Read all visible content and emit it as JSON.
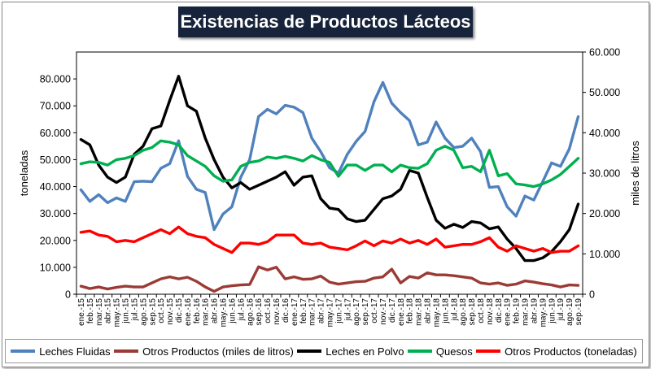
{
  "chart_data": {
    "type": "line",
    "title": "Existencias de Productos Lácteos",
    "ylabel_left": "toneladas",
    "ylabel_right": "miles de litros",
    "ylim_left": [
      0,
      90000
    ],
    "ylim_right": [
      0,
      60000
    ],
    "yticks_left": [
      "0",
      "10.000",
      "20.000",
      "30.000",
      "40.000",
      "50.000",
      "60.000",
      "70.000",
      "80.000"
    ],
    "yticks_right": [
      "0",
      "10.000",
      "20.000",
      "30.000",
      "40.000",
      "50.000",
      "60.000"
    ],
    "yticks_left_values": [
      0,
      10000,
      20000,
      30000,
      40000,
      50000,
      60000,
      70000,
      80000
    ],
    "yticks_right_values": [
      0,
      10000,
      20000,
      30000,
      40000,
      50000,
      60000
    ],
    "categories": [
      "ene.-15",
      "feb.-15",
      "mar.-15",
      "abr.-15",
      "may.-15",
      "jun.-15",
      "jul.-15",
      "ago.-15",
      "sep.-15",
      "oct.-15",
      "nov.-15",
      "dic.-15",
      "ene.-16",
      "feb.-16",
      "mar.-16",
      "abr.-16",
      "may.-16",
      "jun.-16",
      "jul.-16",
      "ago.-16",
      "sep.-16",
      "oct.-16",
      "nov.-16",
      "dic.-16",
      "ene.-17",
      "feb.-17",
      "mar.-17",
      "abr.-17",
      "may.-17",
      "jun.-17",
      "jul.-17",
      "ago.-17",
      "sep.-17",
      "oct.-17",
      "nov.-17",
      "dic.-17",
      "ene.-18",
      "feb.-18",
      "mar.-18",
      "abr.-18",
      "may.-18",
      "jun.-18",
      "jul.-18",
      "ago.-18",
      "sep.-18",
      "oct.-18",
      "nov.-18",
      "dic.-18",
      "ene.-19",
      "feb.-19",
      "mar.-19",
      "abr.-19",
      "may.-19",
      "jun.-19",
      "jul.-19",
      "ago.-19",
      "sep.-19"
    ],
    "series": [
      {
        "name": "Leches Fluidas",
        "axis": "left",
        "color": "#4f81bd",
        "values": [
          38800,
          34500,
          37000,
          34000,
          35800,
          34500,
          41800,
          42000,
          41800,
          46800,
          48500,
          57000,
          43800,
          39000,
          37800,
          24000,
          29800,
          32500,
          43500,
          50000,
          66000,
          68700,
          67000,
          70200,
          69500,
          67500,
          58000,
          53000,
          47000,
          45000,
          52000,
          56800,
          60500,
          71500,
          78700,
          71000,
          67500,
          64500,
          55500,
          56500,
          64000,
          58000,
          54500,
          55000,
          58000,
          53000,
          39700,
          40000,
          32500,
          29000,
          36500,
          35000,
          41800,
          48800,
          47500,
          54000,
          66000
        ]
      },
      {
        "name": "Otros Productos (miles de litros)",
        "axis": "right",
        "color": "#9b3b35",
        "values": [
          2000,
          1400,
          1800,
          1300,
          1700,
          2000,
          1800,
          1800,
          2800,
          3800,
          4300,
          3800,
          4200,
          3200,
          1800,
          700,
          1800,
          2100,
          2300,
          2400,
          6800,
          6000,
          6700,
          3800,
          4300,
          3700,
          3800,
          4500,
          3000,
          2500,
          2800,
          3100,
          3200,
          4000,
          4300,
          6200,
          2800,
          4400,
          4000,
          5300,
          4800,
          4800,
          4600,
          4300,
          4000,
          2800,
          2500,
          2800,
          2200,
          2500,
          3300,
          3000,
          2600,
          2300,
          1800,
          2300,
          2200
        ]
      },
      {
        "name": "Leches en Polvo",
        "axis": "left",
        "color": "#000000",
        "values": [
          57500,
          55500,
          48000,
          43500,
          41500,
          43500,
          52000,
          55000,
          61500,
          62500,
          72000,
          81000,
          70000,
          68000,
          58000,
          50000,
          43500,
          39500,
          41500,
          39000,
          40500,
          42000,
          43500,
          45500,
          40500,
          43500,
          44000,
          35500,
          32000,
          31500,
          28000,
          27000,
          27500,
          31500,
          35500,
          36500,
          39000,
          46000,
          45000,
          36000,
          27500,
          24500,
          26000,
          24800,
          27000,
          26500,
          24300,
          25000,
          20500,
          17000,
          12500,
          12500,
          13500,
          15800,
          19500,
          24000,
          33500
        ]
      },
      {
        "name": "Quesos",
        "axis": "left",
        "color": "#00b050",
        "values": [
          48500,
          49200,
          49000,
          48000,
          50000,
          50500,
          51500,
          53500,
          54500,
          57000,
          56500,
          55500,
          51500,
          49500,
          47500,
          44000,
          42000,
          42500,
          47500,
          49000,
          49500,
          51000,
          50500,
          51200,
          50500,
          49500,
          51500,
          50000,
          49000,
          43800,
          48000,
          48000,
          46000,
          48000,
          48000,
          45500,
          48000,
          47000,
          46800,
          48500,
          53500,
          55000,
          53500,
          47000,
          47500,
          45500,
          53500,
          44000,
          44800,
          41000,
          40600,
          40000,
          41000,
          42500,
          44500,
          47500,
          50500
        ]
      },
      {
        "name": "Otros Productos (toneladas)",
        "axis": "left",
        "color": "#ff0000",
        "values": [
          23000,
          23500,
          22000,
          21500,
          19500,
          20000,
          19500,
          21000,
          22500,
          24000,
          22500,
          25000,
          22500,
          21500,
          21000,
          18500,
          17000,
          15500,
          19000,
          19000,
          18500,
          19500,
          22000,
          22000,
          22000,
          19000,
          18500,
          19000,
          17500,
          17000,
          16500,
          18000,
          19800,
          18000,
          19800,
          19000,
          20500,
          19000,
          20000,
          18500,
          20500,
          17500,
          18000,
          18500,
          18500,
          19500,
          21000,
          17500,
          16000,
          18000,
          17000,
          16000,
          17000,
          15500,
          16000,
          16000,
          18000
        ]
      }
    ]
  }
}
